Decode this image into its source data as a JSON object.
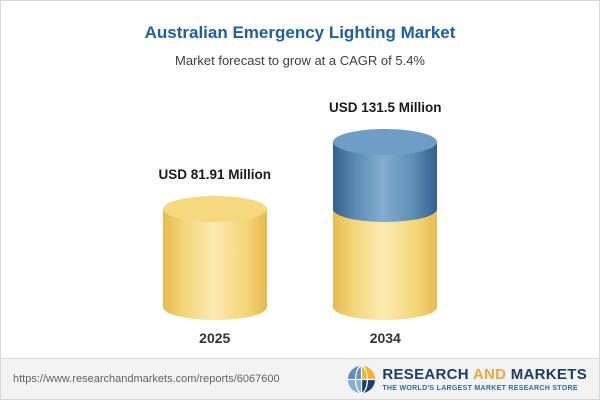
{
  "header": {
    "title": "Australian Emergency Lighting Market",
    "subtitle": "Market forecast to grow at a CAGR of 5.4%"
  },
  "chart_data": {
    "type": "bar",
    "title": "Australian Emergency Lighting Market",
    "subtitle": "Market forecast to grow at a CAGR of 5.4%",
    "unit": "USD Million",
    "cagr_percent": 5.4,
    "categories": [
      "2025",
      "2034"
    ],
    "values": [
      81.91,
      131.5
    ],
    "value_labels": [
      "USD 81.91 Million",
      "USD 131.5 Million"
    ],
    "bar_style": "3d-cylinder",
    "legend": "none",
    "colors": {
      "bar_yellow": "#f4d678",
      "bar_blue_top_segment": "#5d8cb4",
      "title_blue": "#1e5ea5"
    }
  },
  "footer": {
    "url": "https://www.researchandmarkets.com/reports/6067600",
    "logo": {
      "word1": "RESEARCH",
      "word2": "AND",
      "word3": "MARKETS",
      "tagline": "THE WORLD'S LARGEST MARKET RESEARCH STORE"
    }
  }
}
